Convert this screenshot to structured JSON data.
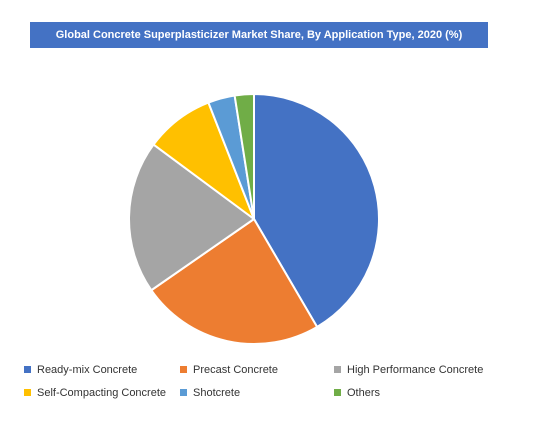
{
  "chart_data": {
    "type": "pie",
    "title": "Global Concrete Superplasticizer Market Share, By Application Type, 2020 (%)",
    "categories": [
      "Ready-mix Concrete",
      "Precast Concrete",
      "High Performance Concrete",
      "Self-Compacting Concrete",
      "Shotcrete",
      "Others"
    ],
    "values": [
      42,
      24,
      20,
      9,
      3.5,
      2.5
    ],
    "colors": [
      "#4472c4",
      "#ed7d31",
      "#a5a5a5",
      "#ffc000",
      "#5b9bd5",
      "#70ad47"
    ],
    "legend_position": "bottom"
  }
}
